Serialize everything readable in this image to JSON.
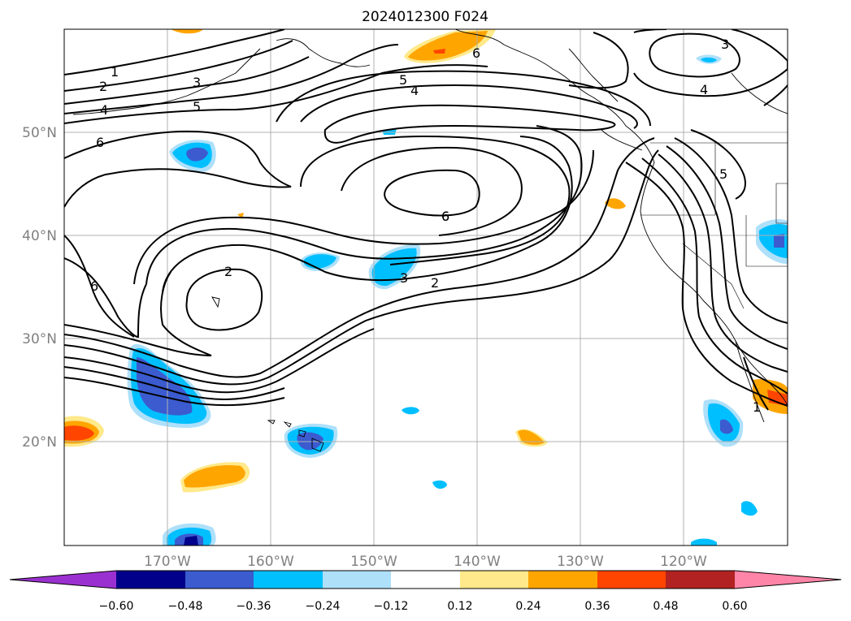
{
  "title": "2024012300 F024",
  "lon_ticks": [
    "170°W",
    "160°W",
    "150°W",
    "140°W",
    "130°W",
    "120°W"
  ],
  "lat_ticks": [
    "50°N",
    "40°N",
    "30°N",
    "20°N"
  ],
  "contour_labels": [
    "1",
    "2",
    "3",
    "4",
    "5",
    "6",
    "6",
    "6",
    "2",
    "6",
    "3",
    "2",
    "5",
    "4",
    "6",
    "3",
    "4",
    "1",
    "5"
  ],
  "colorbar": {
    "tick_labels": [
      "−0.60",
      "−0.48",
      "−0.36",
      "−0.24",
      "−0.12",
      "0.12",
      "0.24",
      "0.36",
      "0.48",
      "0.60"
    ],
    "colors": {
      "under": "#9b30d0",
      "neg060": "#00008b",
      "neg048": "#3b5bcf",
      "neg036": "#00bfff",
      "neg024": "#aee0fa",
      "neutral": "#ffffff",
      "pos012": "#ffe98a",
      "pos024": "#ffa500",
      "pos036": "#ff4500",
      "pos048": "#b22222",
      "over": "#ff85a8"
    }
  }
}
